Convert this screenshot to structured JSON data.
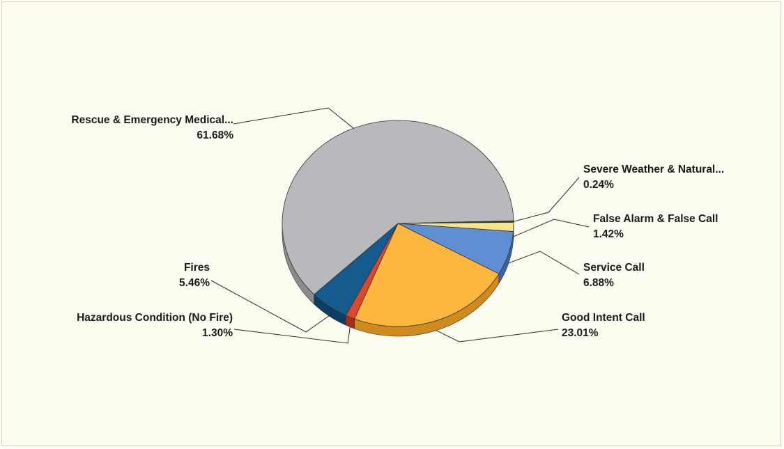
{
  "chart_data": {
    "type": "pie",
    "style": "3d",
    "legend": "none",
    "slices": [
      {
        "label": "Rescue & Emergency Medical...",
        "percent_label": "61.68%",
        "value": 61.68,
        "color": "#b8b9bc",
        "side_color": "#8a8b8e"
      },
      {
        "label": "Severe Weather & Natural...",
        "percent_label": "0.24%",
        "value": 0.24,
        "color": "#4a3a1a",
        "side_color": "#2e2410"
      },
      {
        "label": "False Alarm & False Call",
        "percent_label": "1.42%",
        "value": 1.42,
        "color": "#f6e48c",
        "side_color": "#c8b45c"
      },
      {
        "label": "Service Call",
        "percent_label": "6.88%",
        "value": 6.88,
        "color": "#5f8ed3",
        "side_color": "#3b64a2"
      },
      {
        "label": "Good Intent Call",
        "percent_label": "23.01%",
        "value": 23.01,
        "color": "#fab63d",
        "side_color": "#d18a1e"
      },
      {
        "label": "Hazardous Condition (No Fire)",
        "percent_label": "1.30%",
        "value": 1.3,
        "color": "#e0462a",
        "side_color": "#a82c18"
      },
      {
        "label": "Fires",
        "percent_label": "5.46%",
        "value": 5.46,
        "color": "#155b8e",
        "side_color": "#0c3d62"
      }
    ]
  }
}
